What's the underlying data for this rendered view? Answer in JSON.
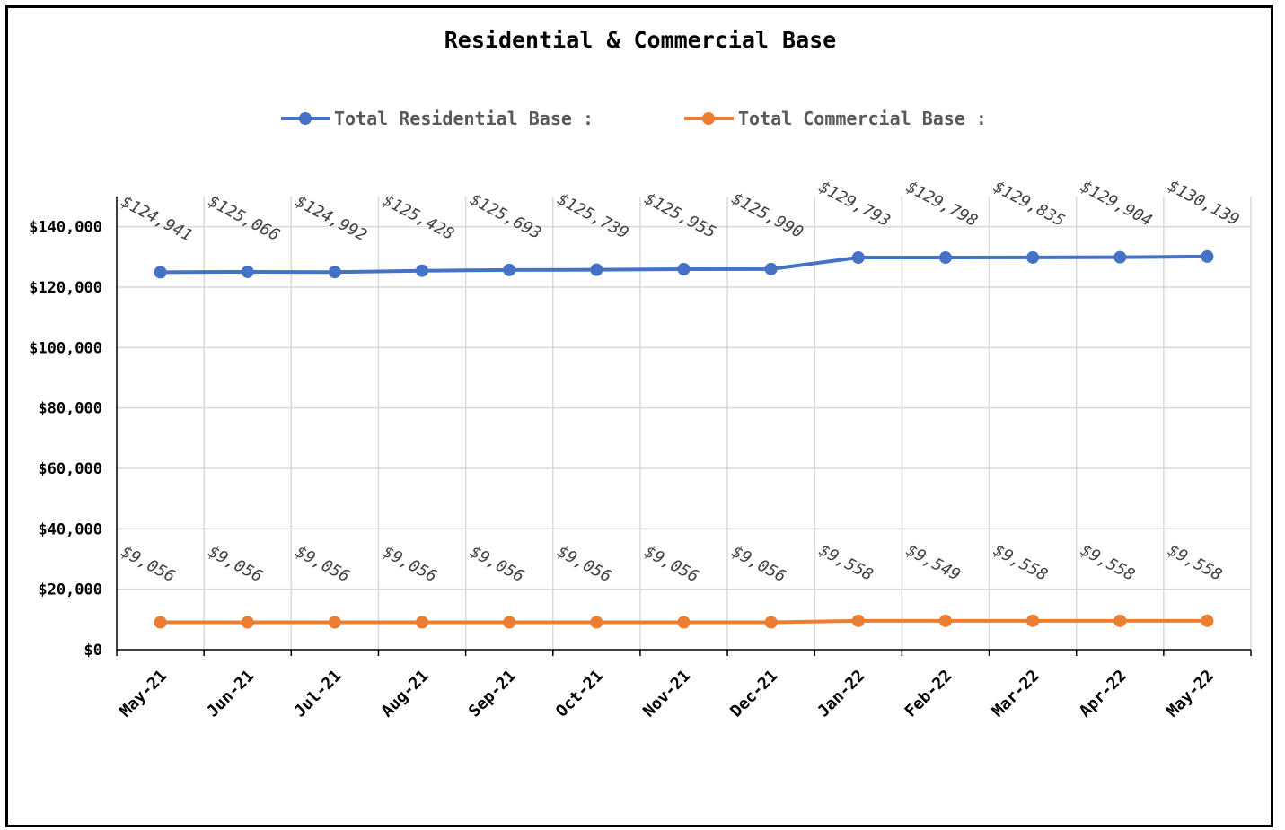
{
  "chart_data": {
    "type": "line",
    "title": "Residential & Commercial Base",
    "xlabel": "",
    "ylabel": "",
    "categories": [
      "May-21",
      "Jun-21",
      "Jul-21",
      "Aug-21",
      "Sep-21",
      "Oct-21",
      "Nov-21",
      "Dec-21",
      "Jan-22",
      "Feb-22",
      "Mar-22",
      "Apr-22",
      "May-22"
    ],
    "ylim": [
      0,
      150000
    ],
    "yticks": [
      0,
      20000,
      40000,
      60000,
      80000,
      100000,
      120000,
      140000
    ],
    "ytick_labels": [
      "$0",
      "$20,000",
      "$40,000",
      "$60,000",
      "$80,000",
      "$100,000",
      "$120,000",
      "$140,000"
    ],
    "grid": true,
    "legend_position": "top",
    "series": [
      {
        "name": "Total Residential Base :",
        "color": "#4472C4",
        "values": [
          124941,
          125066,
          124992,
          125428,
          125693,
          125739,
          125955,
          125990,
          129793,
          129798,
          129835,
          129904,
          130139
        ],
        "labels": [
          "$124,941",
          "$125,066",
          "$124,992",
          "$125,428",
          "$125,693",
          "$125,739",
          "$125,955",
          "$125,990",
          "$129,793",
          "$129,798",
          "$129,835",
          "$129,904",
          "$130,139"
        ]
      },
      {
        "name": "Total Commercial Base :",
        "color": "#ED7D31",
        "values": [
          9056,
          9056,
          9056,
          9056,
          9056,
          9056,
          9056,
          9056,
          9558,
          9549,
          9558,
          9558,
          9558
        ],
        "labels": [
          "$9,056",
          "$9,056",
          "$9,056",
          "$9,056",
          "$9,056",
          "$9,056",
          "$9,056",
          "$9,056",
          "$9,558",
          "$9,549",
          "$9,558",
          "$9,558",
          "$9,558"
        ]
      }
    ]
  }
}
